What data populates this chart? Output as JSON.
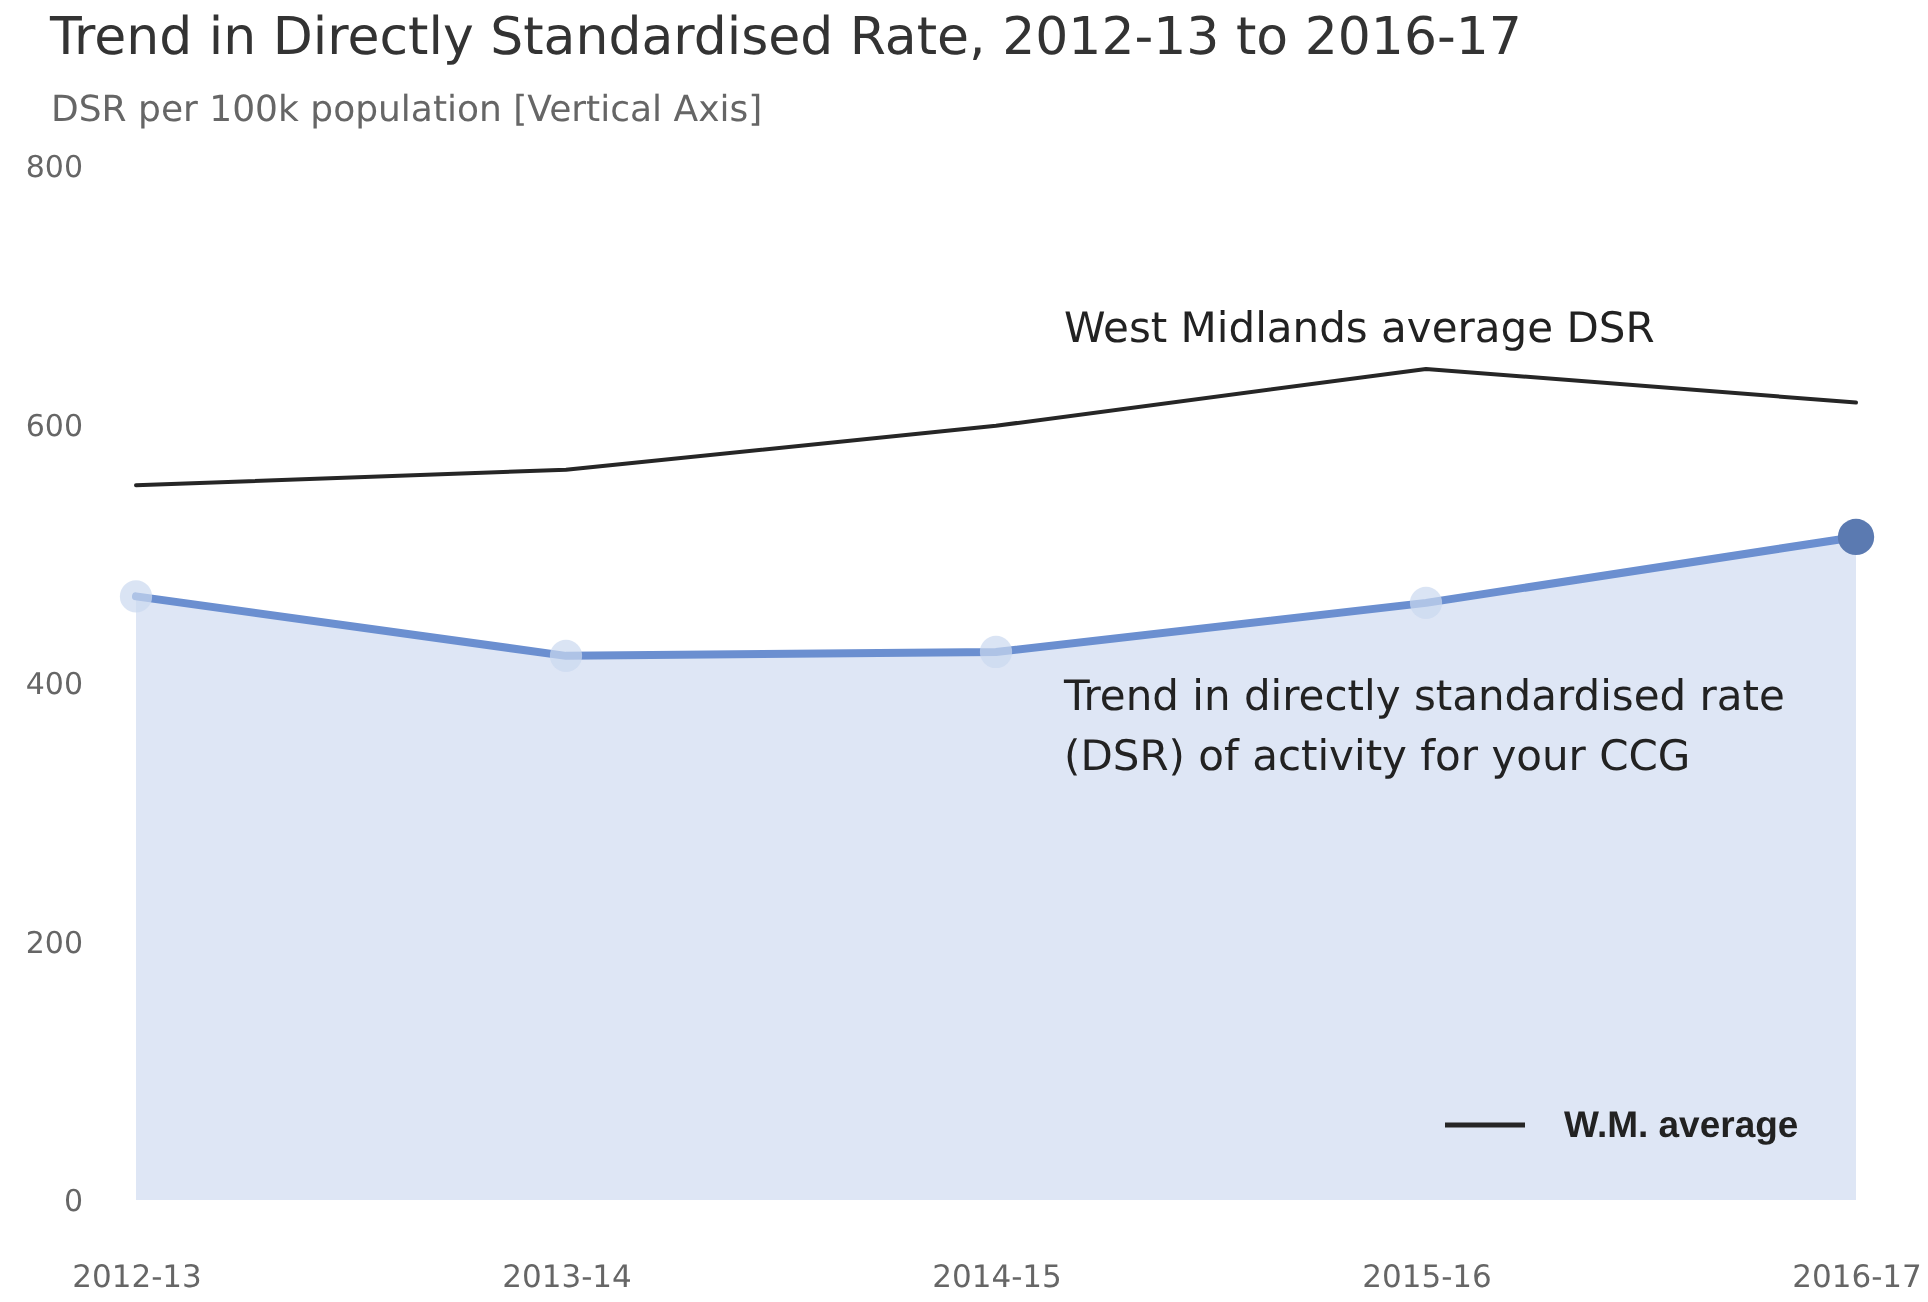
{
  "chart_data": {
    "type": "line",
    "title": "Trend in Directly Standardised Rate, 2012-13 to 2016-17",
    "ylabel": "DSR per 100k population [Vertical Axis]",
    "categories": [
      "2012-13",
      "2013-14",
      "2014-15",
      "2015-16",
      "2016-17"
    ],
    "series": [
      {
        "type": "area",
        "color": "#6b8fd0",
        "marker": "circle",
        "values": [
          467,
          421,
          424,
          462,
          513
        ]
      },
      {
        "name": "W.M. average",
        "color": "#262626",
        "values": [
          553,
          565,
          599,
          643,
          617
        ]
      }
    ],
    "ylim": [
      0,
      800
    ],
    "yticks": [
      0,
      200,
      400,
      600,
      800
    ],
    "grid": false,
    "legend": "bottom right",
    "annotations": [
      "West Midlands average DSR",
      "Trend in directly standardised rate (DSR) of activity for your CCG"
    ]
  }
}
